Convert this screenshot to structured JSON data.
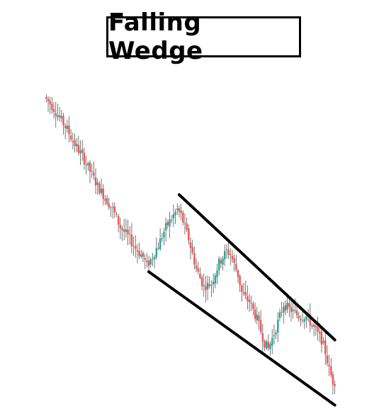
{
  "chart_data": {
    "type": "candlestick",
    "title": "Falling Wedge",
    "xlabel": "",
    "ylabel": "",
    "grid": false,
    "legend": "none",
    "colors": {
      "up": "#26a69a",
      "down": "#ef5350",
      "wick": "#555555",
      "trendline": "#000000"
    },
    "price_path": [
      [
        0,
        100
      ],
      [
        4,
        97
      ],
      [
        8,
        93
      ],
      [
        12,
        89
      ],
      [
        16,
        84
      ],
      [
        20,
        80
      ],
      [
        24,
        75
      ],
      [
        28,
        70
      ],
      [
        32,
        66
      ],
      [
        36,
        62
      ],
      [
        40,
        56
      ],
      [
        44,
        53
      ],
      [
        48,
        49
      ],
      [
        52,
        46
      ],
      [
        54,
        43
      ],
      [
        56,
        45
      ],
      [
        60,
        50
      ],
      [
        64,
        56
      ],
      [
        68,
        60
      ],
      [
        70,
        62
      ],
      [
        72,
        60
      ],
      [
        76,
        52
      ],
      [
        80,
        42
      ],
      [
        84,
        36
      ],
      [
        88,
        37
      ],
      [
        92,
        44
      ],
      [
        96,
        48
      ],
      [
        98,
        47
      ],
      [
        102,
        40
      ],
      [
        104,
        34
      ],
      [
        106,
        32
      ],
      [
        108,
        31
      ],
      [
        112,
        25
      ],
      [
        116,
        17
      ],
      [
        118,
        15
      ],
      [
        122,
        22
      ],
      [
        126,
        30
      ],
      [
        130,
        28
      ],
      [
        134,
        26
      ],
      [
        138,
        26
      ],
      [
        142,
        22
      ],
      [
        146,
        18
      ],
      [
        148,
        14
      ],
      [
        150,
        8
      ],
      [
        152,
        4
      ]
    ],
    "trendlines": [
      {
        "x": [
          70,
          152
        ],
        "y": [
          67,
          18
        ]
      },
      {
        "x": [
          54,
          152
        ],
        "y": [
          41,
          -4
        ]
      }
    ],
    "xlim": [
      -2,
      154
    ],
    "ylim": [
      -6,
      104
    ]
  }
}
